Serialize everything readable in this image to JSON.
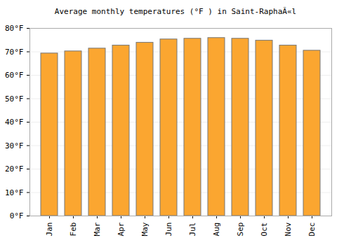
{
  "chart_data": {
    "type": "bar",
    "title": "Average monthly temperatures (°F ) in Saint-RaphaÃ«l",
    "categories": [
      "Jan",
      "Feb",
      "Mar",
      "Apr",
      "May",
      "Jun",
      "Jul",
      "Aug",
      "Sep",
      "Oct",
      "Nov",
      "Dec"
    ],
    "values": [
      69.3,
      70.2,
      71.4,
      72.7,
      73.9,
      75.3,
      75.6,
      75.9,
      75.6,
      74.8,
      72.7,
      70.5
    ],
    "color": "#fba630",
    "ylim": [
      0,
      80
    ],
    "yticks": [
      {
        "value": 0,
        "label": "0°F"
      },
      {
        "value": 10,
        "label": "10°F"
      },
      {
        "value": 20,
        "label": "20°F"
      },
      {
        "value": 30,
        "label": "30°F"
      },
      {
        "value": 40,
        "label": "40°F"
      },
      {
        "value": 50,
        "label": "50°F"
      },
      {
        "value": 60,
        "label": "60°F"
      },
      {
        "value": 70,
        "label": "70°F"
      },
      {
        "value": 80,
        "label": "80°F"
      }
    ],
    "grid": true
  }
}
